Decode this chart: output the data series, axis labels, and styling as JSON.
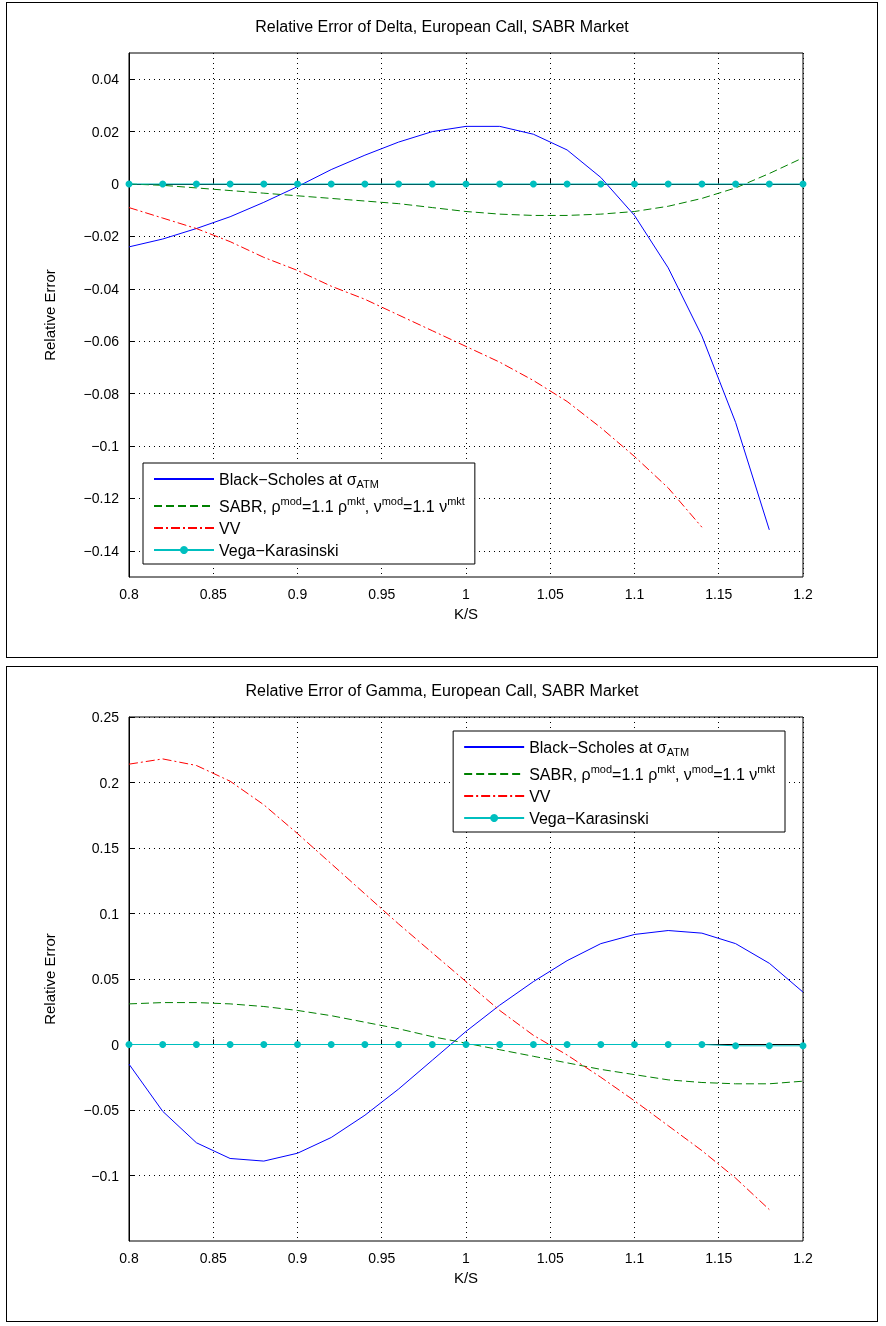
{
  "chart_data": [
    {
      "type": "line",
      "title": "Relative Error of Delta, European Call, SABR Market",
      "xlabel": "K/S",
      "ylabel": "Relative Error",
      "x": [
        0.8,
        0.82,
        0.84,
        0.86,
        0.88,
        0.9,
        0.92,
        0.94,
        0.96,
        0.98,
        1.0,
        1.02,
        1.04,
        1.06,
        1.08,
        1.1,
        1.12,
        1.14,
        1.16,
        1.18,
        1.2
      ],
      "series": [
        {
          "name": "Black−Scholes at σ$_{ATM}$",
          "color": "#0000ff",
          "line_style": "solid",
          "marker": "none",
          "values": [
            -0.024,
            -0.021,
            -0.017,
            -0.0125,
            -0.007,
            -0.001,
            0.0055,
            0.011,
            0.016,
            0.02,
            0.022,
            0.022,
            0.019,
            0.013,
            0.0025,
            -0.012,
            -0.032,
            -0.058,
            -0.091,
            -0.132,
            null
          ]
        },
        {
          "name": "SABR, ρ$^{mod}$=1.1 ρ$^{mkt}$, ν$^{mod}$=1.1 ν$^{mkt}$",
          "color": "#008000",
          "line_style": "dashed",
          "marker": "none",
          "values": [
            0,
            -0.0005,
            -0.0015,
            -0.0025,
            -0.0035,
            -0.0045,
            -0.0055,
            -0.0065,
            -0.0075,
            -0.009,
            -0.0105,
            -0.0115,
            -0.012,
            -0.012,
            -0.0115,
            -0.0105,
            -0.0085,
            -0.0055,
            -0.0015,
            0.004,
            0.01
          ]
        },
        {
          "name": "VV",
          "color": "#ff0000",
          "line_style": "dashdot",
          "marker": "none",
          "values": [
            -0.009,
            -0.013,
            -0.017,
            -0.022,
            -0.028,
            -0.033,
            -0.039,
            -0.044,
            -0.05,
            -0.056,
            -0.062,
            -0.068,
            -0.075,
            -0.083,
            -0.093,
            -0.104,
            -0.116,
            -0.131,
            null,
            null,
            null
          ]
        },
        {
          "name": "Vega−Karasinski",
          "color": "#00bfbf",
          "line_style": "solid",
          "marker": "circle",
          "values": [
            0,
            0,
            0,
            0,
            0,
            0,
            0,
            0,
            0,
            0,
            0,
            0,
            0,
            0,
            0,
            0,
            0,
            0,
            0,
            0,
            0
          ]
        }
      ],
      "xlim": [
        0.8,
        1.2
      ],
      "xticks": [
        0.8,
        0.85,
        0.9,
        0.95,
        1,
        1.05,
        1.1,
        1.15,
        1.2
      ],
      "ylim": [
        -0.15,
        0.05
      ],
      "yticks": [
        {
          "value": -0.14,
          "label": "−0.14"
        },
        {
          "value": -0.12,
          "label": "−0.12"
        },
        {
          "value": -0.1,
          "label": "−0.1"
        },
        {
          "value": -0.08,
          "label": "−0.08"
        },
        {
          "value": -0.06,
          "label": "−0.06"
        },
        {
          "value": -0.04,
          "label": "−0.04"
        },
        {
          "value": -0.02,
          "label": "−0.02"
        },
        0,
        0.02,
        0.04
      ],
      "grid": true,
      "legend": "bottom left"
    },
    {
      "type": "line",
      "title": "Relative Error of Gamma, European Call, SABR Market",
      "xlabel": "K/S",
      "ylabel": "Relative Error",
      "x": [
        0.8,
        0.82,
        0.84,
        0.86,
        0.88,
        0.9,
        0.92,
        0.94,
        0.96,
        0.98,
        1.0,
        1.02,
        1.04,
        1.06,
        1.08,
        1.1,
        1.12,
        1.14,
        1.16,
        1.18,
        1.2
      ],
      "series": [
        {
          "name": "Black−Scholes at σ$_{ATM}$",
          "color": "#0000ff",
          "line_style": "solid",
          "marker": "none",
          "values": [
            -0.015,
            -0.051,
            -0.075,
            -0.087,
            -0.089,
            -0.083,
            -0.071,
            -0.054,
            -0.034,
            -0.012,
            0.01,
            0.03,
            0.048,
            0.064,
            0.077,
            0.084,
            0.087,
            0.085,
            0.077,
            0.062,
            0.04
          ]
        },
        {
          "name": "SABR, ρ$^{mod}$=1.1 ρ$^{mkt}$, ν$^{mod}$=1.1 ν$^{mkt}$",
          "color": "#008000",
          "line_style": "dashed",
          "marker": "none",
          "values": [
            0.031,
            0.032,
            0.032,
            0.031,
            0.029,
            0.026,
            0.022,
            0.017,
            0.012,
            0.006,
            0.001,
            -0.004,
            -0.009,
            -0.014,
            -0.019,
            -0.023,
            -0.027,
            -0.029,
            -0.03,
            -0.03,
            -0.028
          ]
        },
        {
          "name": "VV",
          "color": "#ff0000",
          "line_style": "dashdot",
          "marker": "none",
          "values": [
            0.214,
            0.218,
            0.213,
            0.201,
            0.183,
            0.161,
            0.138,
            0.115,
            0.092,
            0.07,
            0.048,
            0.026,
            0.007,
            -0.008,
            -0.025,
            -0.043,
            -0.062,
            -0.081,
            -0.102,
            -0.126,
            null
          ]
        },
        {
          "name": "Vega−Karasinski",
          "color": "#00bfbf",
          "line_style": "solid",
          "marker": "circle",
          "values": [
            0,
            0,
            0,
            0,
            0,
            0,
            0,
            0,
            0,
            0,
            0,
            0,
            0,
            0,
            0,
            0,
            0,
            0,
            -0.001,
            -0.001,
            -0.001
          ]
        }
      ],
      "xlim": [
        0.8,
        1.2
      ],
      "xticks": [
        0.8,
        0.85,
        0.9,
        0.95,
        1,
        1.05,
        1.1,
        1.15,
        1.2
      ],
      "ylim": [
        -0.15,
        0.25
      ],
      "yticks": [
        {
          "value": -0.1,
          "label": "−0.1"
        },
        {
          "value": -0.05,
          "label": "−0.05"
        },
        0,
        0.05,
        0.1,
        0.15,
        0.2,
        0.25
      ],
      "grid": true,
      "legend": "top right"
    }
  ]
}
